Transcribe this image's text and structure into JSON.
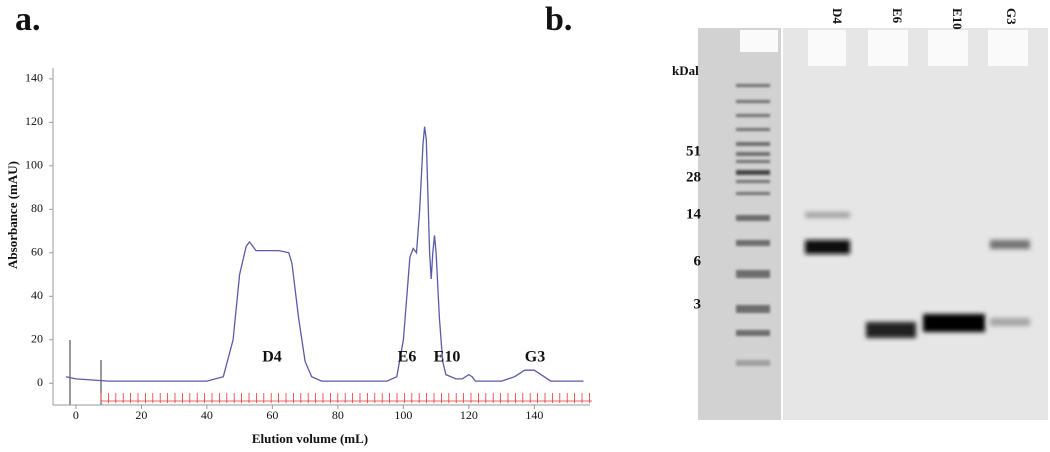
{
  "chart_data": {
    "type": "line",
    "panel_label": "a.",
    "x_label": "Elution volume (mL)",
    "y_label": "Absorbance (mAU)",
    "xlim": [
      -7,
      157
    ],
    "ylim": [
      -10,
      145
    ],
    "xticks": [
      0,
      20,
      40,
      60,
      80,
      100,
      120,
      140
    ],
    "yticks": [
      0,
      20,
      40,
      60,
      80,
      100,
      120,
      140
    ],
    "color": "#5a5aa8",
    "x": [
      -3,
      0,
      10,
      40,
      45,
      48,
      50,
      52,
      53,
      55,
      58,
      62,
      65,
      66,
      68,
      70,
      72,
      75,
      95,
      98,
      100,
      102,
      103,
      104,
      105,
      106,
      106.5,
      107,
      108,
      108.5,
      109,
      109.5,
      110,
      111,
      112,
      113,
      116,
      118,
      120,
      121,
      122,
      130,
      134,
      137,
      140,
      142,
      145,
      155
    ],
    "values": [
      3,
      2,
      1,
      1,
      3,
      20,
      50,
      63,
      65,
      61,
      61,
      61,
      60,
      55,
      30,
      10,
      3,
      1,
      1,
      3,
      20,
      58,
      62,
      60,
      80,
      110,
      118,
      112,
      60,
      48,
      60,
      68,
      60,
      30,
      10,
      4,
      2,
      2,
      4,
      3,
      1,
      1,
      3,
      6,
      6,
      4,
      1,
      1
    ],
    "annotations": [
      "D4",
      "E6",
      "E10",
      "G3"
    ]
  },
  "gel": {
    "panel_label": "b.",
    "unit": "kDal",
    "markers": [
      51,
      28,
      14,
      6,
      3
    ],
    "lanes": [
      "D4",
      "E6",
      "E10",
      "G3"
    ]
  }
}
